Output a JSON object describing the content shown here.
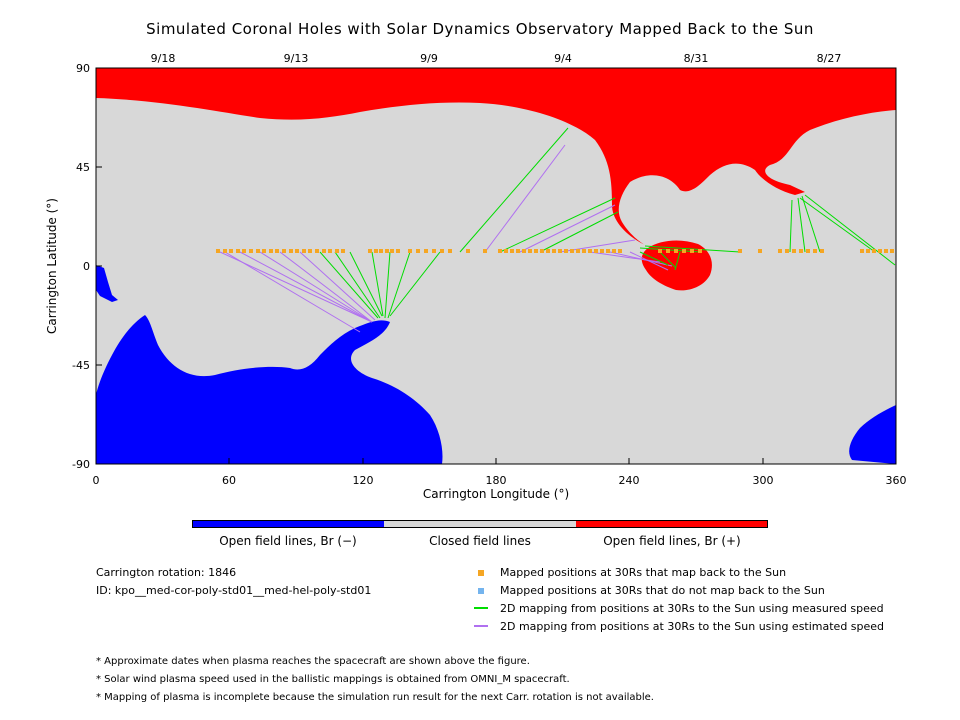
{
  "title": "Simulated Coronal Holes with Solar Dynamics Observatory Mapped Back to the Sun",
  "axes": {
    "xlabel": "Carrington Longitude (°)",
    "ylabel": "Carrington Latitude (°)",
    "xticks": [
      "0",
      "60",
      "120",
      "180",
      "240",
      "300",
      "360"
    ],
    "yticks": [
      "90",
      "45",
      "0",
      "-45",
      "-90"
    ],
    "top_dates": [
      "9/18",
      "9/13",
      "9/9",
      "9/4",
      "8/31",
      "8/27"
    ]
  },
  "colorbar": {
    "labels": [
      "Open field lines, Br (−)",
      "Closed field lines",
      "Open field lines, Br (+)"
    ],
    "colors": [
      "#0000ff",
      "#d8d8d8",
      "#ff0000"
    ]
  },
  "info": {
    "rotation": "Carrington rotation: 1846",
    "run_id": "ID: kpo__med-cor-poly-std01__med-hel-poly-std01"
  },
  "legend": [
    {
      "type": "square",
      "color": "#f5a623",
      "text": "Mapped positions at 30Rs that map back to the Sun"
    },
    {
      "type": "square",
      "color": "#74b4ee",
      "text": "Mapped positions at 30Rs that do not map back to the Sun"
    },
    {
      "type": "line",
      "color": "#00dd00",
      "text": "2D mapping from positions at 30Rs to the Sun using measured speed"
    },
    {
      "type": "line",
      "color": "#b070f0",
      "text": "2D mapping from positions at 30Rs to the Sun using estimated speed"
    }
  ],
  "notes": [
    "* Approximate dates when plasma reaches the spacecraft are shown above the figure.",
    "* Solar wind plasma speed used in the ballistic mappings is obtained from OMNI_M spacecraft.",
    "* Mapping of plasma is incomplete because the simulation run result for the next Carr. rotation is not available."
  ],
  "colors": {
    "closed": "#d8d8d8",
    "open_negative": "#0000ff",
    "open_positive": "#ff0000",
    "mapped_point": "#f5a623",
    "measured_line": "#00dd00",
    "estimated_line": "#b070f0"
  }
}
